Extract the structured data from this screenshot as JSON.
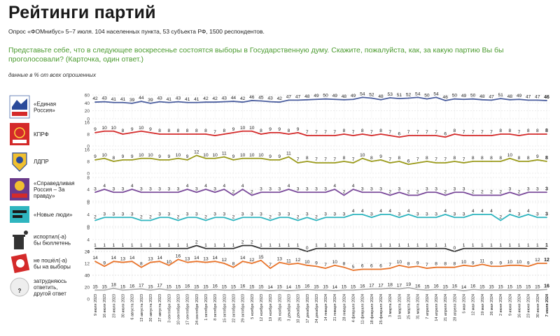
{
  "header": {
    "title": "Рейтинги партий",
    "subtitle": "Опрос «ФОМнибус» 5–7 июля. 104 населенных пункта, 53 субъекта РФ, 1500 респондентов.",
    "question": "Представьте себе, что в следующее воскресенье состоятся выборы в Государственную думу. Скажите, пожалуйста, как, за какую партию Вы бы проголосовали? (Карточка, один ответ.)",
    "note": "данные в % от всех опрошенных"
  },
  "chart_data": {
    "type": "line",
    "x": [
      "9 июля 2023",
      "16 июля 2023",
      "23 июля 2023",
      "30 июля 2023",
      "6 августа 2023",
      "13 августа 2023",
      "20 августа 2023",
      "27 августа 2023",
      "3 сентября 2023",
      "10 сентября 2023",
      "17 сентября 2023",
      "24 сентября 2023",
      "1 октября 2023",
      "8 октября 2023",
      "15 октября 2023",
      "22 октября 2023",
      "29 октября 2023",
      "5 ноября 2023",
      "12 ноября 2023",
      "19 ноября 2023",
      "26 ноября 2023",
      "3 декабря 2023",
      "10 декабря 2023",
      "17 декабря 2023",
      "24 декабря 2023",
      "14 января 2024",
      "21 января 2024",
      "28 января 2024",
      "4 февраля 2024",
      "11 февраля 2024",
      "18 февраля 2024",
      "25 февраля 2024",
      "3 марта 2024",
      "10 марта 2024",
      "25 марта 2024",
      "31 марта 2024",
      "7 апреля 2024",
      "14 апреля 2024",
      "21 апреля 2024",
      "28 апреля 2024",
      "5 мая 2024",
      "12 мая 2024",
      "19 мая 2024",
      "26 мая 2024",
      "2 июня 2024",
      "9 июня 2024",
      "16 июня 2024",
      "23 июня 2024",
      "30 июня 2024",
      "7 июля 2024"
    ],
    "ylim": [
      0,
      60
    ],
    "yticks": [
      0,
      20,
      40,
      60
    ],
    "grid": true,
    "series": [
      {
        "name": "«Единая Россия»",
        "color": "#4a5d9e",
        "ticks": [
          "0",
          "20",
          "40",
          "60"
        ],
        "values": [
          42,
          43,
          41,
          41,
          39,
          44,
          39,
          43,
          41,
          43,
          41,
          41,
          42,
          42,
          43,
          44,
          42,
          46,
          45,
          43,
          42,
          47,
          47,
          48,
          49,
          50,
          49,
          48,
          49,
          54,
          52,
          48,
          53,
          51,
          52,
          54,
          50,
          54,
          46,
          50,
          49,
          50,
          48,
          47,
          51,
          48,
          49,
          47,
          47,
          46
        ]
      },
      {
        "name": "КПРФ",
        "color": "#d42a2a",
        "ticks": [
          "0",
          "8",
          "16"
        ],
        "values": [
          9,
          10,
          10,
          8,
          9,
          10,
          9,
          8,
          8,
          8,
          8,
          8,
          8,
          7,
          8,
          9,
          10,
          10,
          8,
          9,
          9,
          8,
          9,
          7,
          7,
          7,
          7,
          8,
          7,
          8,
          7,
          8,
          7,
          6,
          7,
          7,
          7,
          7,
          6,
          8,
          7,
          7,
          7,
          7,
          8,
          8,
          7,
          8,
          8,
          8
        ]
      },
      {
        "name": "ЛДПР",
        "color": "#9a9a1a",
        "ticks": [
          "0",
          "8",
          "16"
        ],
        "values": [
          9,
          10,
          8,
          9,
          9,
          10,
          10,
          9,
          9,
          10,
          9,
          12,
          10,
          10,
          11,
          9,
          10,
          10,
          10,
          9,
          9,
          11,
          7,
          8,
          7,
          7,
          7,
          8,
          7,
          10,
          8,
          9,
          7,
          8,
          6,
          7,
          8,
          7,
          7,
          8,
          7,
          8,
          8,
          8,
          8,
          10,
          8,
          8,
          9,
          8
        ]
      },
      {
        "name": "«Справедливая Россия – За правду»",
        "color": "#7a4a9a",
        "ticks": [
          "0",
          "4",
          "8"
        ],
        "values": [
          3,
          4,
          3,
          3,
          4,
          3,
          3,
          3,
          3,
          3,
          4,
          3,
          4,
          3,
          4,
          2,
          4,
          2,
          3,
          3,
          3,
          4,
          3,
          3,
          3,
          3,
          4,
          2,
          4,
          3,
          3,
          3,
          2,
          3,
          2,
          2,
          3,
          3,
          2,
          3,
          3,
          2,
          2,
          2,
          2,
          3,
          2,
          3,
          3,
          3
        ]
      },
      {
        "name": "«Новые люди»",
        "color": "#2fb5bf",
        "ticks": [
          "0",
          "4",
          "8"
        ],
        "values": [
          2,
          3,
          3,
          3,
          3,
          2,
          2,
          3,
          3,
          2,
          3,
          3,
          2,
          3,
          3,
          2,
          3,
          3,
          3,
          2,
          3,
          3,
          2,
          3,
          2,
          3,
          3,
          3,
          4,
          4,
          3,
          4,
          4,
          3,
          4,
          3,
          3,
          3,
          4,
          3,
          3,
          4,
          4,
          4,
          2,
          4,
          3,
          4,
          3,
          3
        ]
      },
      {
        "name": "испортил(-а) бы бюллетень",
        "color": "#333333",
        "ticks": [
          "0",
          "4",
          "8"
        ],
        "values": [
          1,
          1,
          1,
          1,
          1,
          1,
          1,
          1,
          1,
          1,
          1,
          2,
          1,
          1,
          1,
          1,
          2,
          2,
          1,
          1,
          1,
          1,
          1,
          0,
          1,
          1,
          1,
          1,
          1,
          1,
          1,
          1,
          1,
          1,
          1,
          1,
          1,
          1,
          1,
          0,
          1,
          1,
          1,
          1,
          1,
          1,
          1,
          1,
          1,
          1
        ]
      },
      {
        "name": "не пошёл(-а) бы на выборы",
        "color": "#e8732a",
        "ticks": [
          "0",
          "12",
          "24"
        ],
        "values": [
          14,
          9,
          14,
          13,
          14,
          8,
          13,
          14,
          10,
          16,
          13,
          14,
          13,
          14,
          12,
          8,
          14,
          12,
          15,
          7,
          13,
          11,
          12,
          10,
          9,
          7,
          10,
          8,
          5,
          6,
          6,
          6,
          7,
          10,
          8,
          9,
          7,
          8,
          8,
          8,
          10,
          9,
          11,
          9,
          9,
          10,
          10,
          9,
          12,
          12
        ]
      },
      {
        "name": "затрудняюсь ответить, другой ответ",
        "color": "#b0b0b0",
        "ticks": [
          "0",
          "20",
          "40"
        ],
        "values": [
          15,
          15,
          18,
          15,
          16,
          17,
          15,
          17,
          15,
          15,
          16,
          15,
          15,
          16,
          15,
          15,
          16,
          15,
          15,
          14,
          15,
          14,
          15,
          16,
          15,
          15,
          14,
          15,
          15,
          16,
          17,
          17,
          18,
          17,
          19,
          16,
          15,
          16,
          15,
          16,
          14,
          16,
          15,
          15,
          15,
          15,
          15,
          15,
          15,
          16
        ]
      }
    ]
  }
}
